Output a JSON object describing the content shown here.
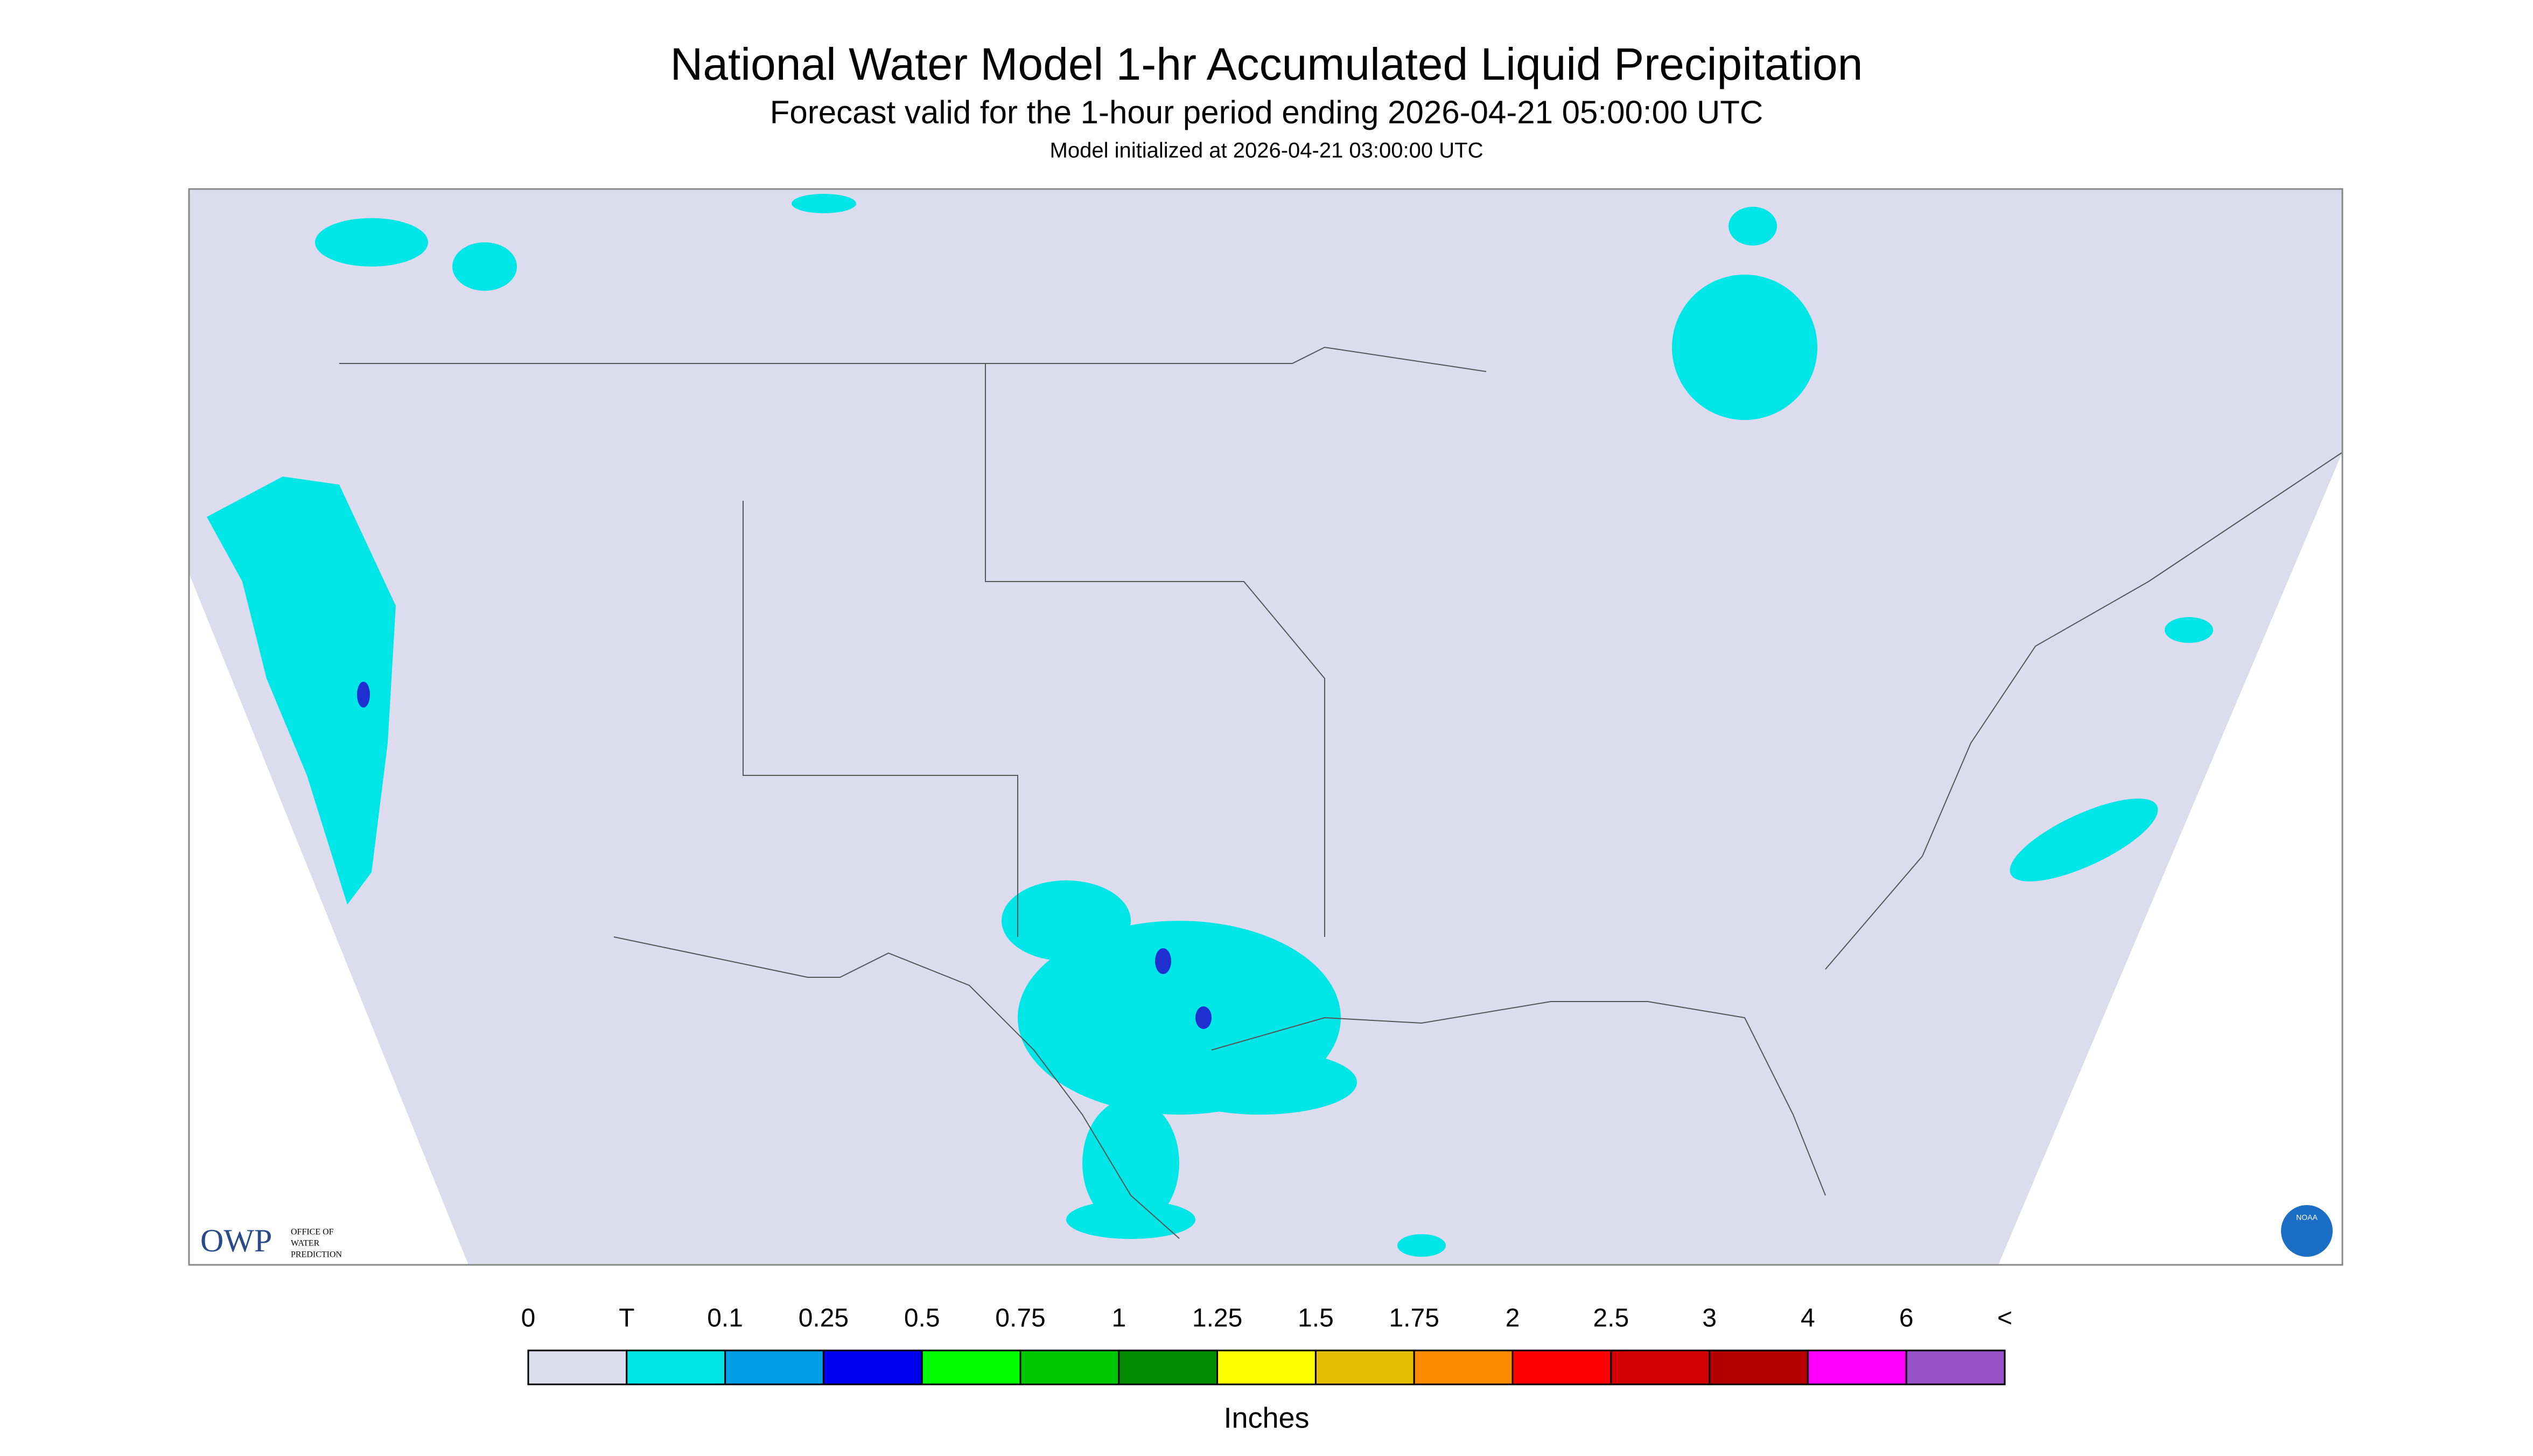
{
  "header": {
    "title": "National Water Model 1-hr Accumulated Liquid Precipitation",
    "subtitle": "Forecast valid for the 1-hour period ending 2026-04-21 05:00:00 UTC",
    "init": "Model initialized at 2026-04-21 03:00:00 UTC"
  },
  "map": {
    "logo": {
      "owp": "OWP",
      "office": [
        "OFFICE OF",
        "WATER",
        "PREDICTION"
      ]
    },
    "noaa": "NOAA"
  },
  "legend": {
    "labels": [
      "0",
      "T",
      "0.1",
      "0.25",
      "0.5",
      "0.75",
      "1",
      "1.25",
      "1.5",
      "1.75",
      "2",
      "2.5",
      "3",
      "4",
      "6",
      "<"
    ],
    "colors": [
      "#dcdcee",
      "#00e5e5",
      "#009ee8",
      "#0000f0",
      "#00ff00",
      "#00c800",
      "#008c00",
      "#ffff00",
      "#e6be00",
      "#ff8c00",
      "#ff0000",
      "#d20000",
      "#b40000",
      "#ff00ff",
      "#9650c8"
    ],
    "unit": "Inches"
  }
}
